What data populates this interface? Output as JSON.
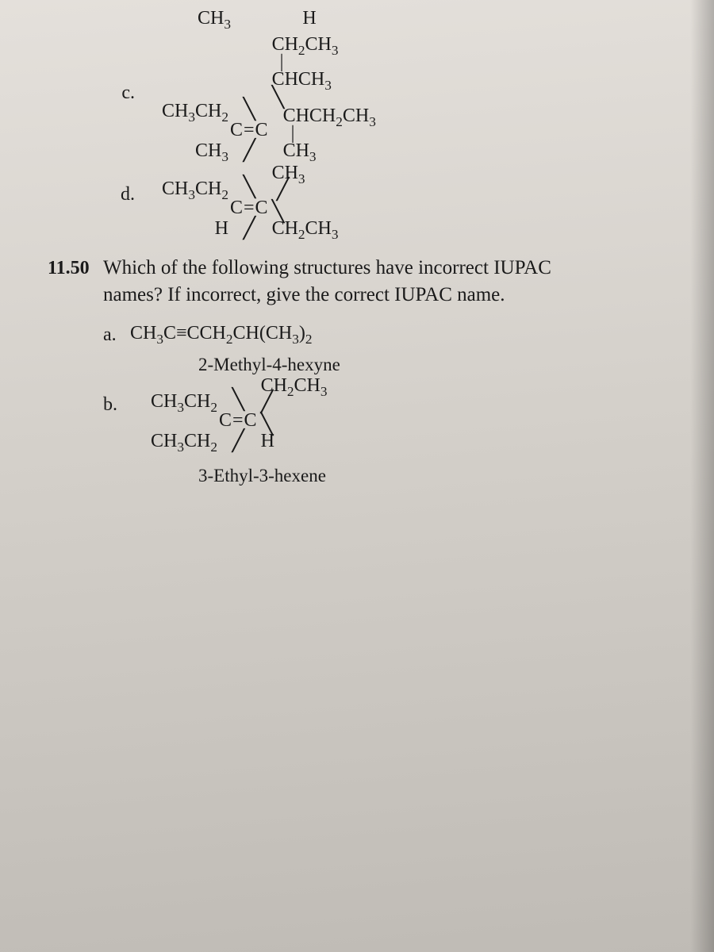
{
  "top_fragments": {
    "left_top": "CH₃",
    "right_top": "H"
  },
  "item_c": {
    "label": "c.",
    "left_upper": "CH₃CH₂",
    "left_lower": "CH₃",
    "center": "C=C",
    "right_line1_a": "CH₂CH₃",
    "right_line1_bar": "|",
    "right_line2": "CHCH₃",
    "right_line3": "CHCH₂CH₃",
    "right_line3_bar": "|",
    "right_line4": "CH₃"
  },
  "item_d": {
    "label": "d.",
    "left_upper": "CH₃CH₂",
    "left_lower": "H",
    "center": "C=C",
    "right_upper": "CH₃",
    "right_lower": "CH₂CH₃"
  },
  "q1150": {
    "number": "11.50",
    "text_line1": "Which of the following structures have incorrect IUPAC",
    "text_line2": "names? If incorrect, give the correct IUPAC name."
  },
  "part_a": {
    "label": "a.",
    "formula": "CH₃C≡CCH₂CH(CH₃)₂",
    "caption": "2-Methyl-4-hexyne"
  },
  "part_b": {
    "label": "b.",
    "left_upper": "CH₃CH₂",
    "left_lower": "CH₃CH₂",
    "center": "C=C",
    "right_upper": "CH₂CH₃",
    "right_lower": "H",
    "caption": "3-Ethyl-3-hexene"
  }
}
